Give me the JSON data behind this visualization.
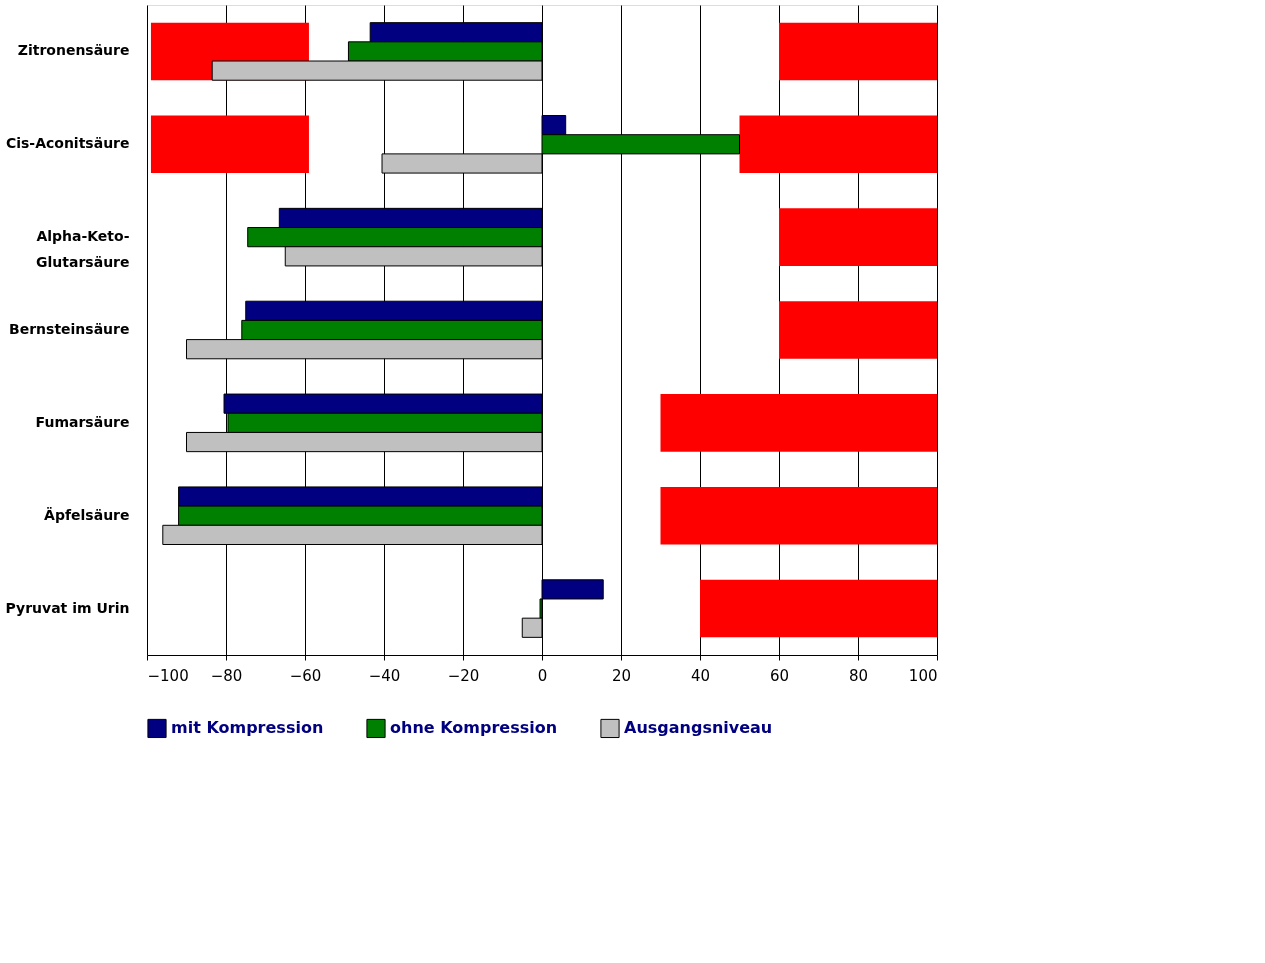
{
  "chart_data": {
    "type": "bar",
    "orientation": "horizontal",
    "categories": [
      "Zitronensäure",
      "Cis-Aconitsäure",
      "Alpha-Keto-\nGlutarsäure",
      "Bernsteinsäure",
      "Fumarsäure",
      "Äpfelsäure",
      "Pyruvat im Urin"
    ],
    "series": [
      {
        "color": "#ff0000",
        "base": [
          -99,
          -99,
          null,
          null,
          null,
          null,
          null
        ],
        "values": [
          40,
          40,
          null,
          null,
          null,
          null,
          null
        ]
      },
      {
        "color": "#ff0000",
        "base": [
          60,
          50,
          60,
          60,
          30,
          30,
          40
        ],
        "values": [
          40,
          50,
          40,
          40,
          70,
          70,
          60
        ]
      },
      {
        "name": "mit Kompression",
        "color": "#000080",
        "values": [
          -43.5,
          6,
          -66.5,
          -75,
          -80.5,
          -92,
          15.5
        ]
      },
      {
        "name": "ohne Kompression",
        "color": "#008000",
        "values": [
          -49,
          50,
          -74.5,
          -76,
          -79.5,
          -92,
          -0.5
        ]
      },
      {
        "name": "Ausgangsniveau",
        "color": "#c0c0c0",
        "values": [
          -83.5,
          -40.5,
          -65,
          -90,
          -90,
          -96,
          -5
        ]
      }
    ],
    "xlim": [
      -100,
      100
    ],
    "xticks": [
      -100,
      -80,
      -60,
      -40,
      -20,
      0,
      20,
      40,
      60,
      80,
      100
    ],
    "grid": "x",
    "legend": "bottom"
  }
}
